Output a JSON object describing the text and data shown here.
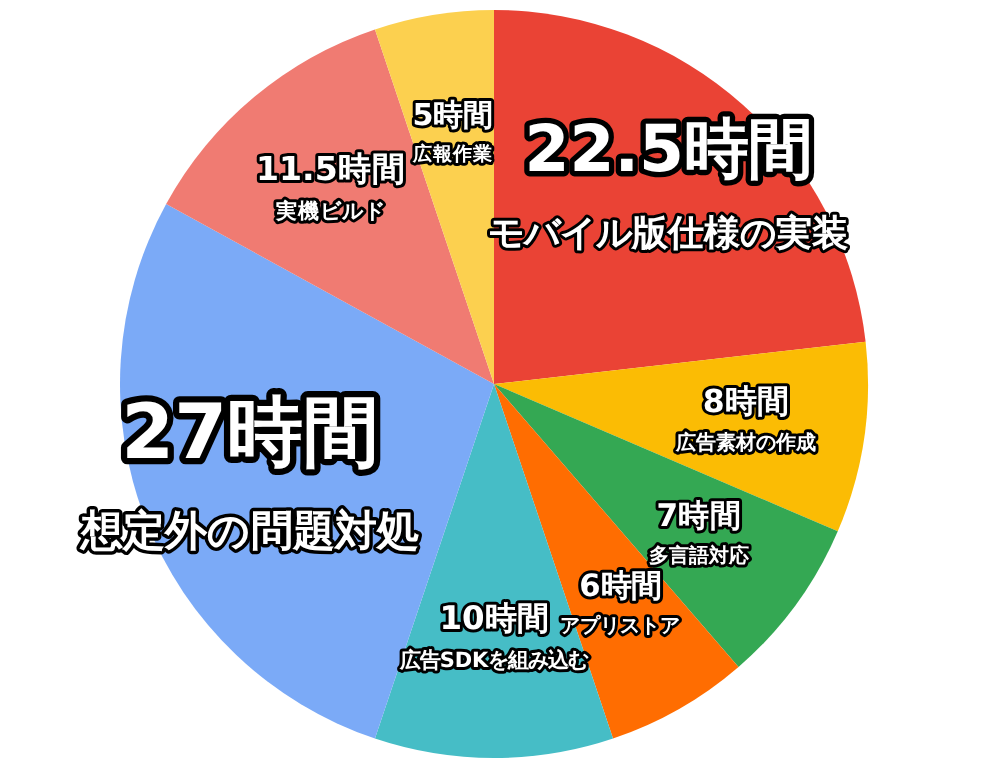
{
  "chart_data": {
    "type": "pie",
    "categories": [
      "モバイル版仕様の実装",
      "広告素材の作成",
      "多言語対応",
      "アプリストア",
      "広告SDKを組み込む",
      "想定外の問題対処",
      "実機ビルド",
      "広報作業"
    ],
    "values": [
      22.5,
      8,
      7,
      6,
      10,
      27,
      11.5,
      5
    ],
    "value_labels": [
      "22.5時間",
      "8時間",
      "7時間",
      "6時間",
      "10時間",
      "27時間",
      "11.5時間",
      "5時間"
    ],
    "colors": [
      "#ea4335",
      "#fbbc04",
      "#34a853",
      "#ff6d01",
      "#46bdc6",
      "#7baaf7",
      "#f07b72",
      "#fcd04f"
    ]
  }
}
